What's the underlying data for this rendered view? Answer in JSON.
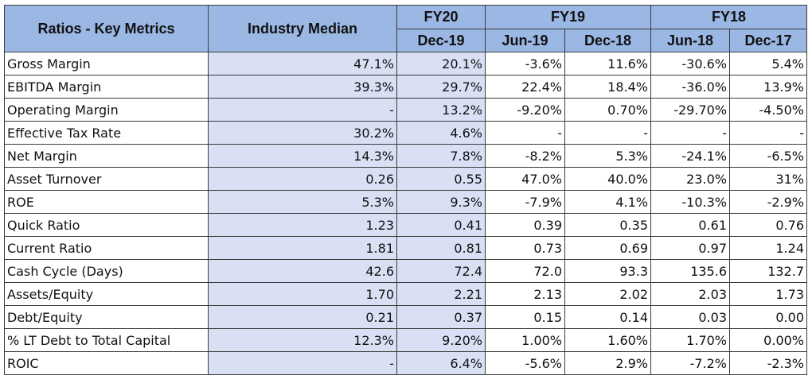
{
  "header": {
    "metric_col": "Ratios - Key Metrics",
    "industry_col": "Industry Median",
    "fiscal_years": [
      "FY20",
      "FY19",
      "FY18"
    ],
    "periods": [
      "Dec-19",
      "Jun-19",
      "Dec-18",
      "Jun-18",
      "Dec-17"
    ]
  },
  "rows": [
    {
      "label": "Gross Margin",
      "industry": "47.1%",
      "values": [
        "20.1%",
        "-3.6%",
        "11.6%",
        "-30.6%",
        "5.4%"
      ]
    },
    {
      "label": "EBITDA Margin",
      "industry": "39.3%",
      "values": [
        "29.7%",
        "22.4%",
        "18.4%",
        "-36.0%",
        "13.9%"
      ]
    },
    {
      "label": "Operating Margin",
      "industry": "-",
      "values": [
        "13.2%",
        "-9.20%",
        "0.70%",
        "-29.70%",
        "-4.50%"
      ]
    },
    {
      "label": "Effective Tax Rate",
      "industry": "30.2%",
      "values": [
        "4.6%",
        "-",
        "-",
        "-",
        "-"
      ]
    },
    {
      "label": "Net Margin",
      "industry": "14.3%",
      "values": [
        "7.8%",
        "-8.2%",
        "5.3%",
        "-24.1%",
        "-6.5%"
      ]
    },
    {
      "label": "Asset Turnover",
      "industry": "0.26",
      "values": [
        "0.55",
        "47.0%",
        "40.0%",
        "23.0%",
        "31%"
      ]
    },
    {
      "label": "ROE",
      "industry": "5.3%",
      "values": [
        "9.3%",
        "-7.9%",
        "4.1%",
        "-10.3%",
        "-2.9%"
      ]
    },
    {
      "label": "Quick Ratio",
      "industry": "1.23",
      "values": [
        "0.41",
        "0.39",
        "0.35",
        "0.61",
        "0.76"
      ]
    },
    {
      "label": "Current Ratio",
      "industry": "1.81",
      "values": [
        "0.81",
        "0.73",
        "0.69",
        "0.97",
        "1.24"
      ]
    },
    {
      "label": "Cash Cycle (Days)",
      "industry": "42.6",
      "values": [
        "72.4",
        "72.0",
        "93.3",
        "135.6",
        "132.7"
      ]
    },
    {
      "label": "Assets/Equity",
      "industry": "1.70",
      "values": [
        "2.21",
        "2.13",
        "2.02",
        "2.03",
        "1.73"
      ]
    },
    {
      "label": "Debt/Equity",
      "industry": "0.21",
      "values": [
        "0.37",
        "0.15",
        "0.14",
        "0.03",
        "0.00"
      ]
    },
    {
      "label": "% LT Debt to Total Capital",
      "industry": "12.3%",
      "values": [
        "9.20%",
        "1.00%",
        "1.60%",
        "1.70%",
        "0.00%"
      ]
    },
    {
      "label": "ROIC",
      "industry": "-",
      "values": [
        "6.4%",
        "-5.6%",
        "2.9%",
        "-7.2%",
        "-2.3%"
      ]
    }
  ],
  "colors": {
    "header_fill": "#9bb7e4",
    "shade_fill": "#d9e0f4",
    "border": "#3a3a3a"
  }
}
